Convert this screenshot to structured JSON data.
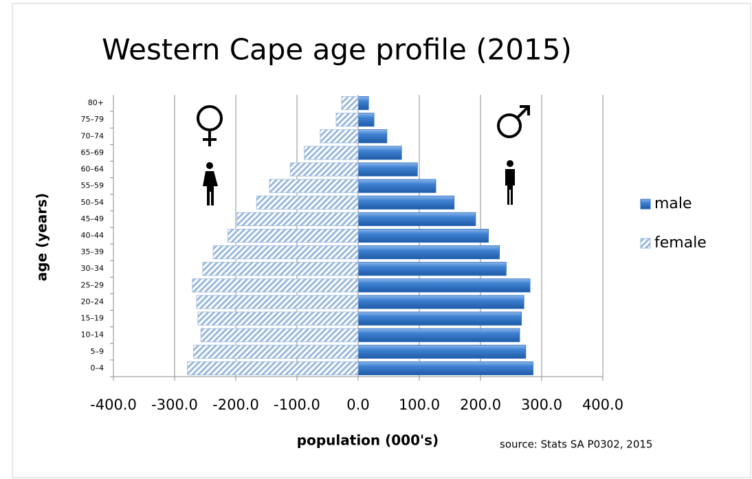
{
  "chart_data": {
    "type": "pyramid",
    "title": "Western Cape age profile (2015)",
    "x_label": "population (000's)",
    "y_label": "age (years)",
    "annotation": "source: Stats SA P0302, 2015",
    "categories": [
      "0–4",
      "5–9",
      "10–14",
      "15–19",
      "20–24",
      "25–29",
      "30–34",
      "35–39",
      "40–44",
      "45–49",
      "50–54",
      "55–59",
      "60–64",
      "65–69",
      "70–74",
      "75–79",
      "80+"
    ],
    "series": [
      {
        "name": "male",
        "color": "#2f6fbf",
        "values": [
          286,
          274,
          264,
          267,
          271,
          281,
          242,
          231,
          213,
          192,
          157,
          127,
          97,
          71,
          47,
          26,
          17
        ]
      },
      {
        "name": "female",
        "color": "#9ab8dd",
        "values": [
          -279,
          -269,
          -257,
          -262,
          -264,
          -271,
          -254,
          -237,
          -213,
          -198,
          -166,
          -145,
          -111,
          -88,
          -62,
          -36,
          -27
        ]
      }
    ],
    "xlim": [
      -400,
      400
    ],
    "xticks": [
      {
        "value": -400,
        "label": "-400.0"
      },
      {
        "value": -300,
        "label": "-300.0"
      },
      {
        "value": -200,
        "label": "-200.0"
      },
      {
        "value": -100,
        "label": "-100.0"
      },
      {
        "value": 0,
        "label": "0.0"
      },
      {
        "value": 100,
        "label": "100.0"
      },
      {
        "value": 200,
        "label": "200.0"
      },
      {
        "value": 300,
        "label": "300.0"
      },
      {
        "value": 400,
        "label": "400.0"
      }
    ],
    "grid": true,
    "legend": "right"
  }
}
